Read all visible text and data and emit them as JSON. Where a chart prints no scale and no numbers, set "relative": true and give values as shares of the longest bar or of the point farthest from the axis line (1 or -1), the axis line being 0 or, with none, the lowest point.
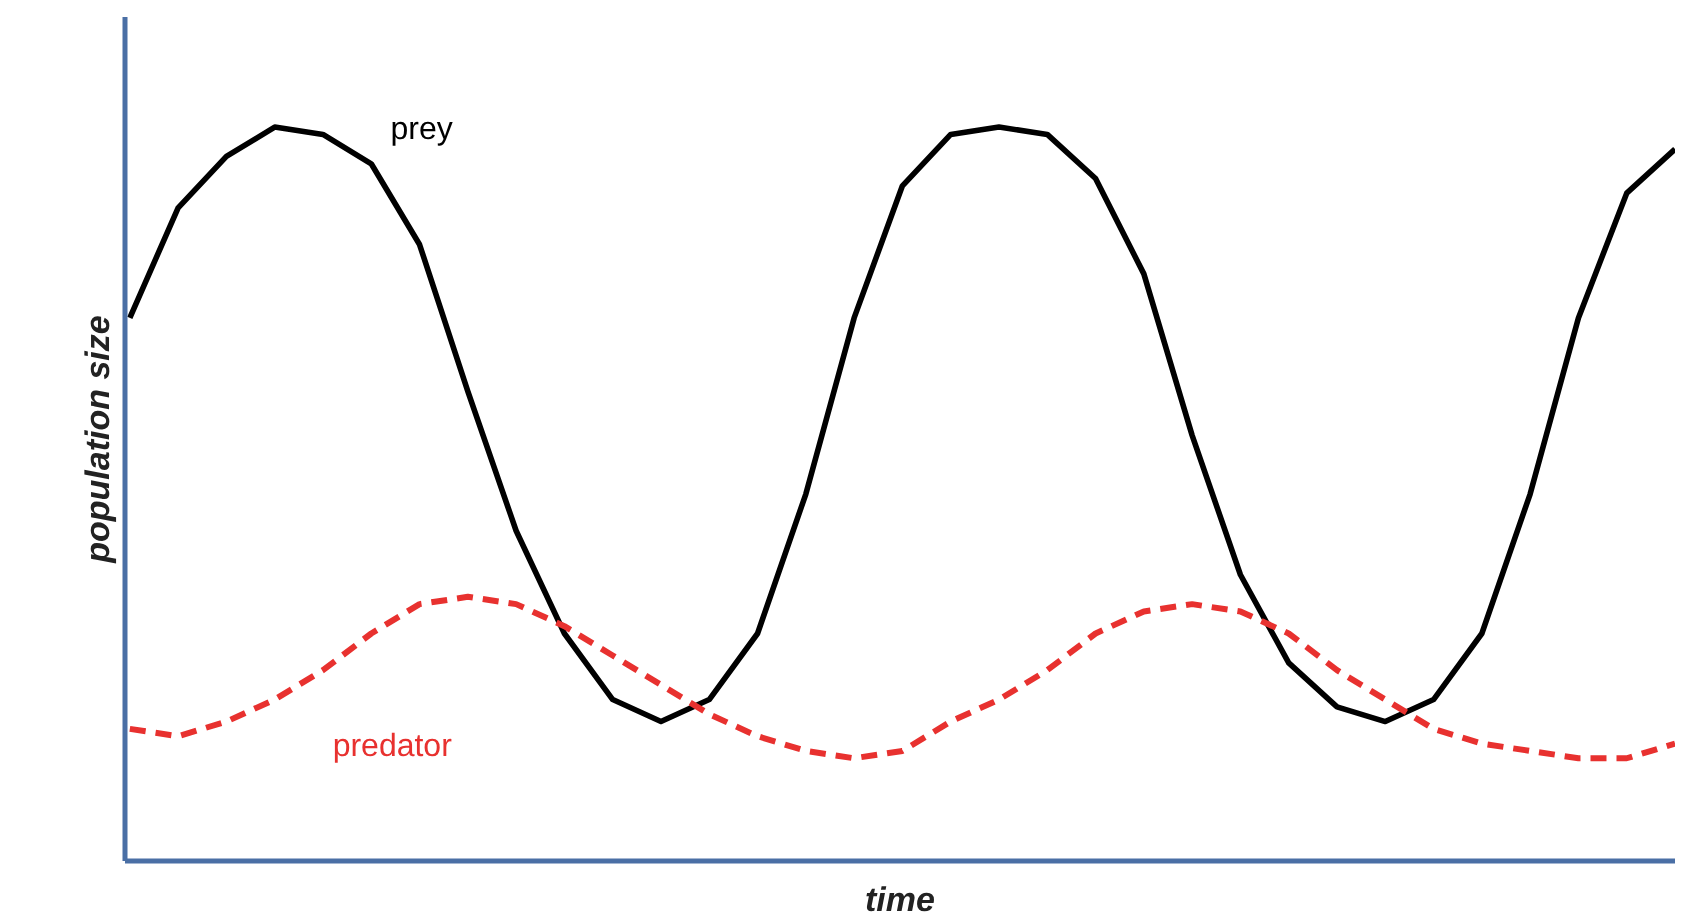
{
  "chart_data": {
    "type": "line",
    "relative": true,
    "xlabel": "time",
    "ylabel": "population size",
    "categories": [
      null,
      null,
      null,
      null,
      null,
      null,
      null,
      null,
      null,
      null,
      null,
      null,
      null,
      null,
      null,
      null,
      null,
      null,
      null,
      null,
      null,
      null,
      null,
      null,
      null,
      null,
      null,
      null,
      null,
      null,
      null,
      null,
      null
    ],
    "series": [
      {
        "name": "prey",
        "color": "#000000",
        "line_style": "solid",
        "values": [
          0.74,
          0.89,
          0.96,
          1.0,
          0.99,
          0.95,
          0.84,
          0.64,
          0.45,
          0.31,
          0.22,
          0.19,
          0.22,
          0.31,
          0.5,
          0.74,
          0.92,
          0.99,
          1.0,
          0.99,
          0.93,
          0.8,
          0.58,
          0.39,
          0.27,
          0.21,
          0.19,
          0.22,
          0.31,
          0.5,
          0.74,
          0.91,
          0.97
        ]
      },
      {
        "name": "predator",
        "color": "#e8312f",
        "line_style": "dashed",
        "values": [
          0.18,
          0.17,
          0.19,
          0.22,
          0.26,
          0.31,
          0.35,
          0.36,
          0.35,
          0.32,
          0.28,
          0.24,
          0.2,
          0.17,
          0.15,
          0.14,
          0.15,
          0.19,
          0.22,
          0.26,
          0.31,
          0.34,
          0.35,
          0.34,
          0.31,
          0.26,
          0.22,
          0.18,
          0.16,
          0.15,
          0.14,
          0.14,
          0.16
        ]
      }
    ],
    "grid": false,
    "marker": "none"
  }
}
